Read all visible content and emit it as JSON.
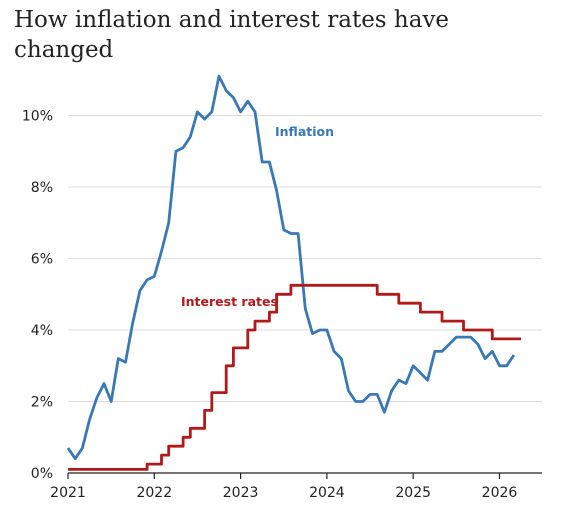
{
  "chart_data": {
    "type": "line",
    "title": "How inflation and interest rates have changed",
    "xlabel": "",
    "ylabel": "",
    "x_ticks": [
      "2021",
      "2022",
      "2023",
      "2024",
      "2025",
      "2026"
    ],
    "y_ticks": [
      "0%",
      "2%",
      "4%",
      "6%",
      "8%",
      "10%"
    ],
    "xlim": [
      "2021-01",
      "2026-05"
    ],
    "ylim": [
      0,
      11.5
    ],
    "grid": "horizontal",
    "legend": "inline labels",
    "series": [
      {
        "name": "Inflation",
        "color": "#3a78b5",
        "step": false,
        "points": [
          [
            "2021-01",
            0.7
          ],
          [
            "2021-02",
            0.4
          ],
          [
            "2021-03",
            0.7
          ],
          [
            "2021-04",
            1.5
          ],
          [
            "2021-05",
            2.1
          ],
          [
            "2021-06",
            2.5
          ],
          [
            "2021-07",
            2.0
          ],
          [
            "2021-08",
            3.2
          ],
          [
            "2021-09",
            3.1
          ],
          [
            "2021-10",
            4.2
          ],
          [
            "2021-11",
            5.1
          ],
          [
            "2021-12",
            5.4
          ],
          [
            "2022-01",
            5.5
          ],
          [
            "2022-02",
            6.2
          ],
          [
            "2022-03",
            7.0
          ],
          [
            "2022-04",
            9.0
          ],
          [
            "2022-05",
            9.1
          ],
          [
            "2022-06",
            9.4
          ],
          [
            "2022-07",
            10.1
          ],
          [
            "2022-08",
            9.9
          ],
          [
            "2022-09",
            10.1
          ],
          [
            "2022-10",
            11.1
          ],
          [
            "2022-11",
            10.7
          ],
          [
            "2022-12",
            10.5
          ],
          [
            "2023-01",
            10.1
          ],
          [
            "2023-02",
            10.4
          ],
          [
            "2023-03",
            10.1
          ],
          [
            "2023-04",
            8.7
          ],
          [
            "2023-05",
            8.7
          ],
          [
            "2023-06",
            7.9
          ],
          [
            "2023-07",
            6.8
          ],
          [
            "2023-08",
            6.7
          ],
          [
            "2023-09",
            6.7
          ],
          [
            "2023-10",
            4.6
          ],
          [
            "2023-11",
            3.9
          ],
          [
            "2023-12",
            4.0
          ],
          [
            "2024-01",
            4.0
          ],
          [
            "2024-02",
            3.4
          ],
          [
            "2024-03",
            3.2
          ],
          [
            "2024-04",
            2.3
          ],
          [
            "2024-05",
            2.0
          ],
          [
            "2024-06",
            2.0
          ],
          [
            "2024-07",
            2.2
          ],
          [
            "2024-08",
            2.2
          ],
          [
            "2024-09",
            1.7
          ],
          [
            "2024-10",
            2.3
          ],
          [
            "2024-11",
            2.6
          ],
          [
            "2024-12",
            2.5
          ],
          [
            "2025-01",
            3.0
          ],
          [
            "2025-02",
            2.8
          ],
          [
            "2025-03",
            2.6
          ],
          [
            "2025-04",
            3.4
          ],
          [
            "2025-05",
            3.4
          ],
          [
            "2025-06",
            3.6
          ],
          [
            "2025-07",
            3.8
          ],
          [
            "2025-08",
            3.8
          ],
          [
            "2025-09",
            3.8
          ],
          [
            "2025-10",
            3.6
          ],
          [
            "2025-11",
            3.2
          ],
          [
            "2025-12",
            3.4
          ],
          [
            "2026-01",
            3.0
          ],
          [
            "2026-02",
            3.0
          ],
          [
            "2026-03",
            3.3
          ]
        ]
      },
      {
        "name": "Interest rates",
        "color": "#b01a1a",
        "step": true,
        "points": [
          [
            "2021-01",
            0.1
          ],
          [
            "2021-12",
            0.25
          ],
          [
            "2022-02",
            0.5
          ],
          [
            "2022-03",
            0.75
          ],
          [
            "2022-05",
            1.0
          ],
          [
            "2022-06",
            1.25
          ],
          [
            "2022-08",
            1.75
          ],
          [
            "2022-09",
            2.25
          ],
          [
            "2022-11",
            3.0
          ],
          [
            "2022-12",
            3.5
          ],
          [
            "2023-02",
            4.0
          ],
          [
            "2023-03",
            4.25
          ],
          [
            "2023-05",
            4.5
          ],
          [
            "2023-06",
            5.0
          ],
          [
            "2023-08",
            5.25
          ],
          [
            "2024-08",
            5.0
          ],
          [
            "2024-11",
            4.75
          ],
          [
            "2025-02",
            4.5
          ],
          [
            "2025-05",
            4.25
          ],
          [
            "2025-08",
            4.0
          ],
          [
            "2025-12",
            3.75
          ],
          [
            "2026-04",
            3.75
          ]
        ]
      }
    ]
  }
}
